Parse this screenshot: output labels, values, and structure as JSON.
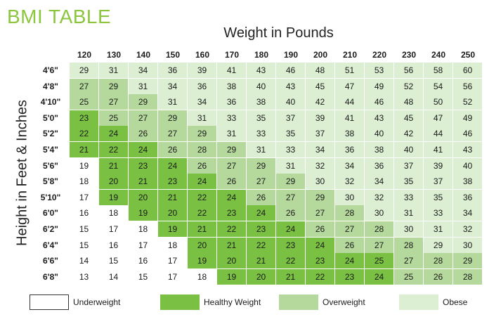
{
  "title": "BMI TABLE",
  "colors": {
    "title": "#8cc63f",
    "underweight": "#ffffff",
    "healthy": "#7ac143",
    "overweight": "#b5d99c",
    "obese": "#dcefd2"
  },
  "legend": [
    {
      "key": "underweight",
      "label": "Underweight"
    },
    {
      "key": "healthy",
      "label": "Healthy Weight"
    },
    {
      "key": "overweight",
      "label": "Overweight"
    },
    {
      "key": "obese",
      "label": "Obese"
    }
  ],
  "chart_data": {
    "type": "heatmap",
    "title": "BMI TABLE",
    "xlabel": "Weight in Pounds",
    "ylabel": "Height in Feet & Inches",
    "x": [
      "120",
      "130",
      "140",
      "150",
      "160",
      "170",
      "180",
      "190",
      "200",
      "210",
      "220",
      "230",
      "240",
      "250"
    ],
    "y": [
      "4'6\"",
      "4'8\"",
      "4'10\"",
      "5'0\"",
      "5'2\"",
      "5'4\"",
      "5'6\"",
      "5'8\"",
      "5'10\"",
      "6'0\"",
      "6'2\"",
      "6'4\"",
      "6'6\"",
      "6'8\""
    ],
    "values": [
      [
        29,
        31,
        34,
        36,
        39,
        41,
        43,
        46,
        48,
        51,
        53,
        56,
        58,
        60
      ],
      [
        27,
        29,
        31,
        34,
        36,
        38,
        40,
        43,
        45,
        47,
        49,
        52,
        54,
        56
      ],
      [
        25,
        27,
        29,
        31,
        34,
        36,
        38,
        40,
        42,
        44,
        46,
        48,
        50,
        52
      ],
      [
        23,
        25,
        27,
        29,
        31,
        33,
        35,
        37,
        39,
        41,
        43,
        45,
        47,
        49
      ],
      [
        22,
        24,
        26,
        27,
        29,
        31,
        33,
        35,
        37,
        38,
        40,
        42,
        44,
        46
      ],
      [
        21,
        22,
        24,
        26,
        28,
        29,
        31,
        33,
        34,
        36,
        38,
        40,
        41,
        43
      ],
      [
        19,
        21,
        23,
        24,
        26,
        27,
        29,
        31,
        32,
        34,
        36,
        37,
        39,
        40
      ],
      [
        18,
        20,
        21,
        23,
        24,
        26,
        27,
        29,
        30,
        32,
        34,
        35,
        37,
        38
      ],
      [
        17,
        19,
        20,
        21,
        22,
        24,
        26,
        27,
        29,
        30,
        32,
        33,
        35,
        36
      ],
      [
        16,
        18,
        19,
        20,
        22,
        23,
        24,
        26,
        27,
        28,
        30,
        31,
        33,
        34
      ],
      [
        15,
        17,
        18,
        19,
        21,
        22,
        23,
        24,
        26,
        27,
        28,
        30,
        31,
        32
      ],
      [
        15,
        16,
        17,
        18,
        20,
        21,
        22,
        23,
        24,
        26,
        27,
        28,
        29,
        30
      ],
      [
        14,
        15,
        16,
        17,
        19,
        20,
        21,
        22,
        23,
        24,
        25,
        27,
        28,
        29
      ],
      [
        13,
        14,
        15,
        17,
        18,
        19,
        20,
        21,
        22,
        23,
        24,
        25,
        26,
        28
      ]
    ],
    "categories_map": [
      [
        "o",
        "o",
        "o",
        "o",
        "o",
        "o",
        "o",
        "o",
        "o",
        "o",
        "o",
        "o",
        "o",
        "o"
      ],
      [
        "v",
        "v",
        "o",
        "o",
        "o",
        "o",
        "o",
        "o",
        "o",
        "o",
        "o",
        "o",
        "o",
        "o"
      ],
      [
        "v",
        "v",
        "v",
        "o",
        "o",
        "o",
        "o",
        "o",
        "o",
        "o",
        "o",
        "o",
        "o",
        "o"
      ],
      [
        "h",
        "v",
        "v",
        "v",
        "o",
        "o",
        "o",
        "o",
        "o",
        "o",
        "o",
        "o",
        "o",
        "o"
      ],
      [
        "h",
        "h",
        "v",
        "v",
        "v",
        "o",
        "o",
        "o",
        "o",
        "o",
        "o",
        "o",
        "o",
        "o"
      ],
      [
        "h",
        "h",
        "h",
        "v",
        "v",
        "v",
        "o",
        "o",
        "o",
        "o",
        "o",
        "o",
        "o",
        "o"
      ],
      [
        "u",
        "h",
        "h",
        "h",
        "v",
        "v",
        "v",
        "o",
        "o",
        "o",
        "o",
        "o",
        "o",
        "o"
      ],
      [
        "u",
        "h",
        "h",
        "h",
        "h",
        "v",
        "v",
        "v",
        "o",
        "o",
        "o",
        "o",
        "o",
        "o"
      ],
      [
        "u",
        "h",
        "h",
        "h",
        "h",
        "h",
        "v",
        "v",
        "v",
        "o",
        "o",
        "o",
        "o",
        "o"
      ],
      [
        "u",
        "u",
        "h",
        "h",
        "h",
        "h",
        "h",
        "v",
        "v",
        "v",
        "o",
        "o",
        "o",
        "o"
      ],
      [
        "u",
        "u",
        "u",
        "h",
        "h",
        "h",
        "h",
        "h",
        "v",
        "v",
        "v",
        "o",
        "o",
        "o"
      ],
      [
        "u",
        "u",
        "u",
        "u",
        "h",
        "h",
        "h",
        "h",
        "h",
        "v",
        "v",
        "v",
        "o",
        "o"
      ],
      [
        "u",
        "u",
        "u",
        "u",
        "h",
        "h",
        "h",
        "h",
        "h",
        "h",
        "h",
        "v",
        "v",
        "v"
      ],
      [
        "u",
        "u",
        "u",
        "u",
        "u",
        "h",
        "h",
        "h",
        "h",
        "h",
        "h",
        "v",
        "v",
        "v"
      ]
    ],
    "category_legend": {
      "u": "Underweight",
      "h": "Healthy Weight",
      "v": "Overweight",
      "o": "Obese"
    }
  }
}
